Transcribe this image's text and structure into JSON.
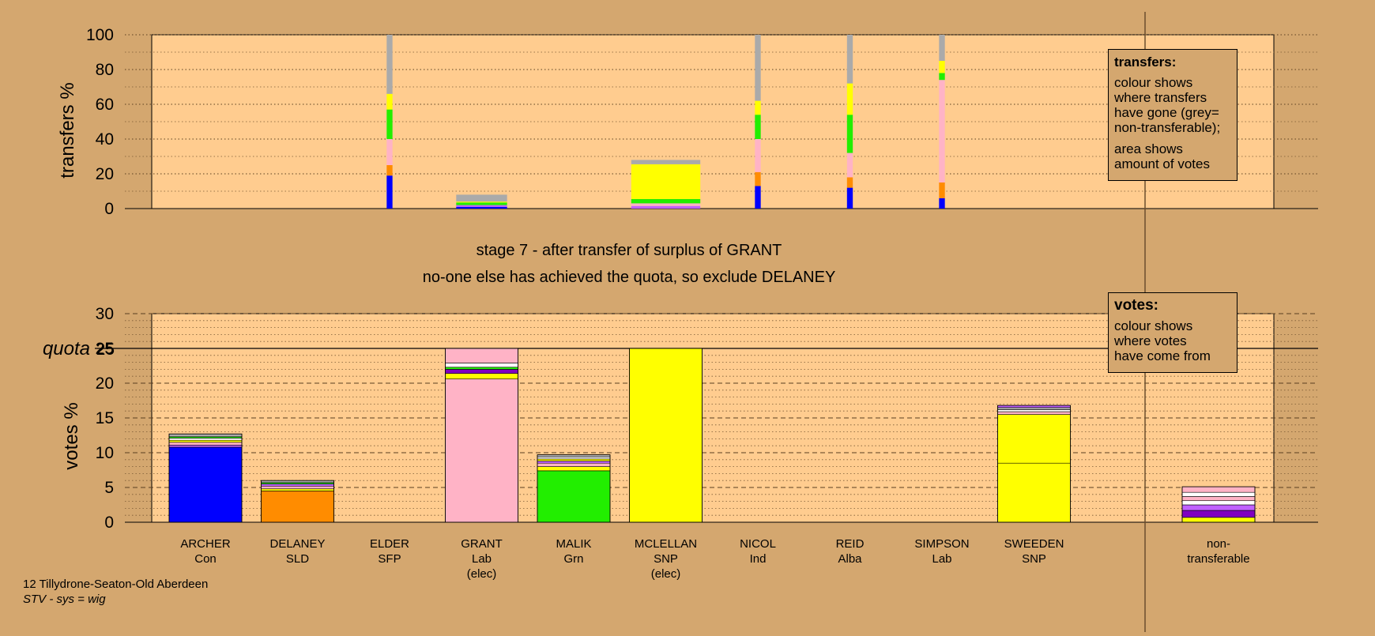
{
  "stage_line": "stage 7 - after transfer of surplus of GRANT",
  "action_line": "no-one else has achieved the quota, so exclude DELANEY",
  "transfers_legend": {
    "title": "transfers:",
    "lines": [
      "colour shows",
      "where transfers",
      "have gone (grey=",
      "non-transferable);"
    ],
    "lines2": [
      "area shows",
      "amount of votes"
    ]
  },
  "votes_legend": {
    "title": "votes:",
    "lines": [
      "colour shows",
      "where votes",
      "have come from"
    ]
  },
  "footer": {
    "ward": "12 Tillydrone-Seaton-Old Aberdeen",
    "system": "STV - sys = wig"
  },
  "colors": {
    "background": "#d4a76f",
    "plot_fill": "#ffcc8f",
    "Con": "#0000ff",
    "SLD": "#ff8c00",
    "Lab": "#ffb3c6",
    "Grn": "#22ee00",
    "SNP": "#ffff00",
    "SFP": "#c060ff",
    "Ind": "#ffffff",
    "Alba": "#8000c0",
    "nontransferable": "#aaaaaa"
  },
  "chart_data": [
    {
      "type": "bar",
      "stacked": true,
      "name": "transfers",
      "ylabel": "transfers %",
      "ylim": [
        0,
        100
      ],
      "yticks": [
        0,
        20,
        40,
        60,
        80,
        100
      ],
      "grid": true,
      "candidates": [
        "ARCHER",
        "DELANEY",
        "ELDER",
        "GRANT",
        "MALIK",
        "MCLELLAN",
        "NICOL",
        "REID",
        "SIMPSON",
        "SWEEDEN"
      ],
      "bars": [
        {
          "column": 2,
          "width": 0.08,
          "segments": [
            {
              "party": "Con",
              "value": 19
            },
            {
              "party": "SLD",
              "value": 6
            },
            {
              "party": "Lab",
              "value": 15
            },
            {
              "party": "Grn",
              "value": 17
            },
            {
              "party": "SNP",
              "value": 9
            },
            {
              "party": "nontransferable",
              "value": 34
            }
          ]
        },
        {
          "column": 3,
          "width": 0.7,
          "segments": [
            {
              "party": "Con",
              "value": 1
            },
            {
              "party": "SFP",
              "value": 1
            },
            {
              "party": "Grn",
              "value": 1.5
            },
            {
              "party": "SNP",
              "value": 0.5
            },
            {
              "party": "nontransferable",
              "value": 4
            }
          ]
        },
        {
          "column": 5,
          "width": 0.95,
          "segments": [
            {
              "party": "SFP",
              "value": 1.5
            },
            {
              "party": "Lab",
              "value": 1.5
            },
            {
              "party": "Grn",
              "value": 2.5
            },
            {
              "party": "SNP",
              "value": 20
            },
            {
              "party": "nontransferable",
              "value": 2.5
            }
          ]
        },
        {
          "column": 6,
          "width": 0.08,
          "segments": [
            {
              "party": "Con",
              "value": 13
            },
            {
              "party": "SLD",
              "value": 8
            },
            {
              "party": "Lab",
              "value": 19
            },
            {
              "party": "Grn",
              "value": 14
            },
            {
              "party": "SNP",
              "value": 8
            },
            {
              "party": "nontransferable",
              "value": 38
            }
          ]
        },
        {
          "column": 7,
          "width": 0.08,
          "segments": [
            {
              "party": "Con",
              "value": 12
            },
            {
              "party": "SLD",
              "value": 6
            },
            {
              "party": "Lab",
              "value": 14
            },
            {
              "party": "Grn",
              "value": 22
            },
            {
              "party": "SNP",
              "value": 18
            },
            {
              "party": "nontransferable",
              "value": 28
            }
          ]
        },
        {
          "column": 8,
          "width": 0.08,
          "segments": [
            {
              "party": "Con",
              "value": 6
            },
            {
              "party": "SLD",
              "value": 9
            },
            {
              "party": "Lab",
              "value": 59
            },
            {
              "party": "Grn",
              "value": 4
            },
            {
              "party": "SNP",
              "value": 7
            },
            {
              "party": "nontransferable",
              "value": 15
            }
          ]
        }
      ]
    },
    {
      "type": "bar",
      "stacked": true,
      "name": "votes",
      "ylabel": "votes %",
      "ylim": [
        0,
        30
      ],
      "yticks": [
        0,
        5,
        10,
        15,
        20,
        25,
        30
      ],
      "quota": 25,
      "quota_label": "quota",
      "grid": true,
      "categories": [
        {
          "name": "ARCHER",
          "party": "Con",
          "elected": ""
        },
        {
          "name": "DELANEY",
          "party": "SLD",
          "elected": ""
        },
        {
          "name": "ELDER",
          "party": "SFP",
          "elected": ""
        },
        {
          "name": "GRANT",
          "party": "Lab",
          "elected": "(elec)"
        },
        {
          "name": "MALIK",
          "party": "Grn",
          "elected": ""
        },
        {
          "name": "MCLELLAN",
          "party": "SNP",
          "elected": "(elec)"
        },
        {
          "name": "NICOL",
          "party": "Ind",
          "elected": ""
        },
        {
          "name": "REID",
          "party": "Alba",
          "elected": ""
        },
        {
          "name": "SIMPSON",
          "party": "Lab",
          "elected": ""
        },
        {
          "name": "SWEEDEN",
          "party": "SNP",
          "elected": ""
        },
        {
          "name": "non-",
          "party": "transferable",
          "elected": ""
        }
      ],
      "stacks": [
        {
          "column": 0,
          "segments": [
            {
              "party": "Con",
              "value": 10.8
            },
            {
              "party": "SFP",
              "value": 0.3
            },
            {
              "party": "Lab",
              "value": 0.4
            },
            {
              "party": "SNP",
              "value": 0.3
            },
            {
              "party": "Ind",
              "value": 0.3
            },
            {
              "party": "Grn",
              "value": 0.2
            },
            {
              "party": "nontransferable",
              "value": 0.4
            }
          ]
        },
        {
          "column": 1,
          "segments": [
            {
              "party": "SLD",
              "value": 4.5
            },
            {
              "party": "SNP",
              "value": 0.3
            },
            {
              "party": "Lab",
              "value": 0.4
            },
            {
              "party": "SFP",
              "value": 0.3
            },
            {
              "party": "Grn",
              "value": 0.2
            },
            {
              "party": "nontransferable",
              "value": 0.3
            }
          ]
        },
        {
          "column": 3,
          "segments": [
            {
              "party": "Lab",
              "value": 20.6
            },
            {
              "party": "SNP",
              "value": 0.8
            },
            {
              "party": "Alba",
              "value": 0.6
            },
            {
              "party": "Grn",
              "value": 0.3
            },
            {
              "party": "Ind",
              "value": 0.6
            },
            {
              "party": "Lab",
              "value": 2.1
            }
          ]
        },
        {
          "column": 4,
          "segments": [
            {
              "party": "Grn",
              "value": 7.4
            },
            {
              "party": "SNP",
              "value": 0.6
            },
            {
              "party": "Lab",
              "value": 0.5
            },
            {
              "party": "SFP",
              "value": 0.3
            },
            {
              "party": "SNP",
              "value": 0.3
            },
            {
              "party": "Ind",
              "value": 0.3
            },
            {
              "party": "nontransferable",
              "value": 0.3
            }
          ]
        },
        {
          "column": 5,
          "segments": [
            {
              "party": "SNP",
              "value": 25.0
            }
          ]
        },
        {
          "column": 9,
          "segments": [
            {
              "party": "SNP",
              "value": 8.5
            },
            {
              "party": "SNP",
              "value": 7.0
            },
            {
              "party": "Lab",
              "value": 0.4
            },
            {
              "party": "Ind",
              "value": 0.3
            },
            {
              "party": "nontransferable",
              "value": 0.3
            },
            {
              "party": "SFP",
              "value": 0.3
            }
          ]
        },
        {
          "column": 10,
          "segments": [
            {
              "party": "SNP",
              "value": 0.7
            },
            {
              "party": "Alba",
              "value": 1.0
            },
            {
              "party": "SFP",
              "value": 0.8
            },
            {
              "party": "Ind",
              "value": 0.6
            },
            {
              "party": "Lab",
              "value": 0.6
            },
            {
              "party": "Ind",
              "value": 0.6
            },
            {
              "party": "Lab",
              "value": 0.8
            }
          ]
        }
      ]
    }
  ]
}
